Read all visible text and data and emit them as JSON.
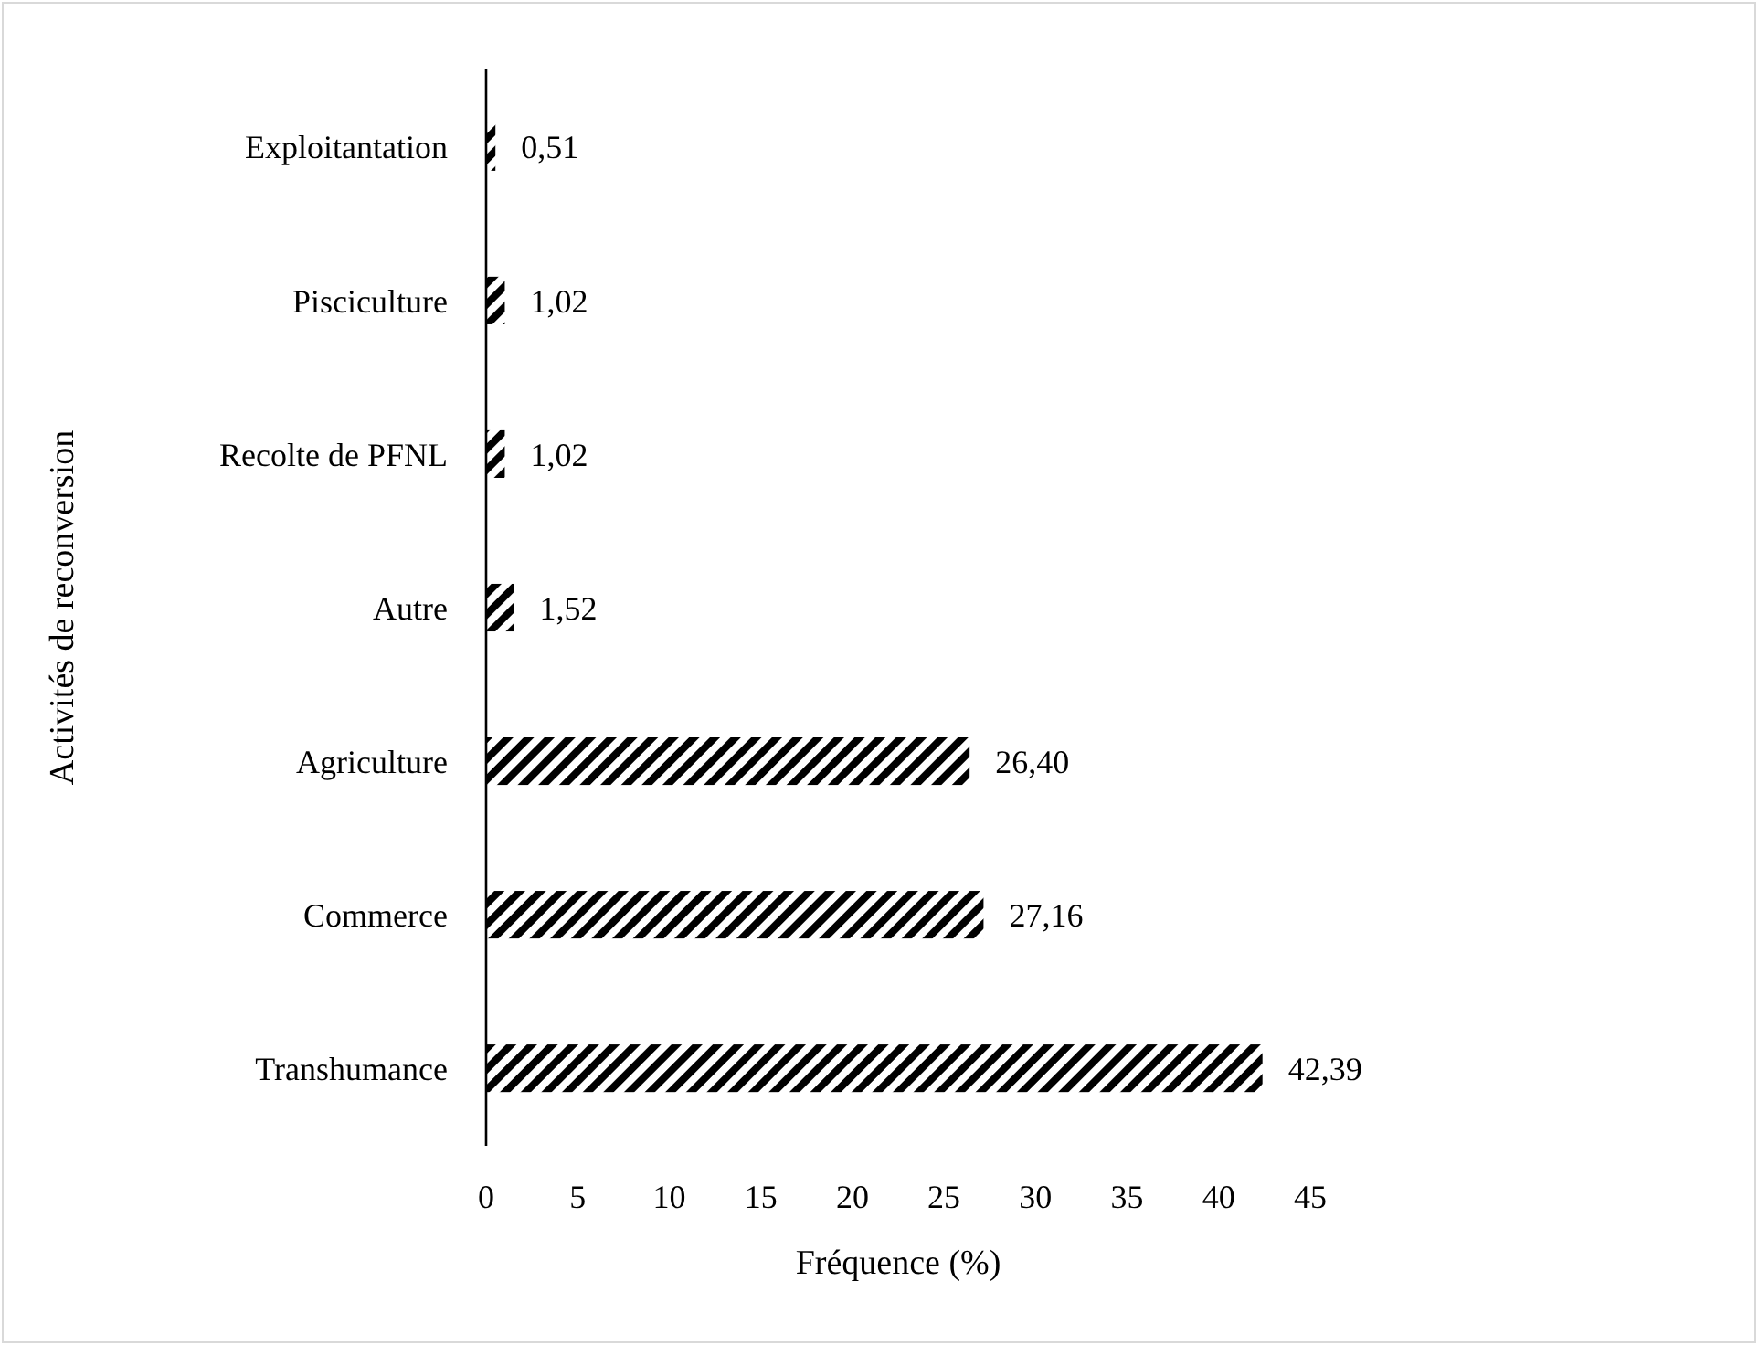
{
  "chart_data": {
    "type": "bar",
    "orientation": "horizontal",
    "xlabel": "Fréquence (%)",
    "ylabel": "Activités de reconversion",
    "categories": [
      "Exploitantation",
      "Pisciculture",
      "Recolte de PFNL",
      "Autre",
      "Agriculture",
      "Commerce",
      "Transhumance"
    ],
    "values": [
      0.51,
      1.02,
      1.02,
      1.52,
      26.4,
      27.16,
      42.39
    ],
    "value_labels": [
      "0,51",
      "1,02",
      "1,02",
      "1,52",
      "26,40",
      "27,16",
      "42,39"
    ],
    "color": "#000000",
    "xlim": [
      0,
      45
    ],
    "xticks": [
      0,
      5,
      10,
      15,
      20,
      25,
      30,
      35,
      40,
      45
    ],
    "grid": false
  }
}
